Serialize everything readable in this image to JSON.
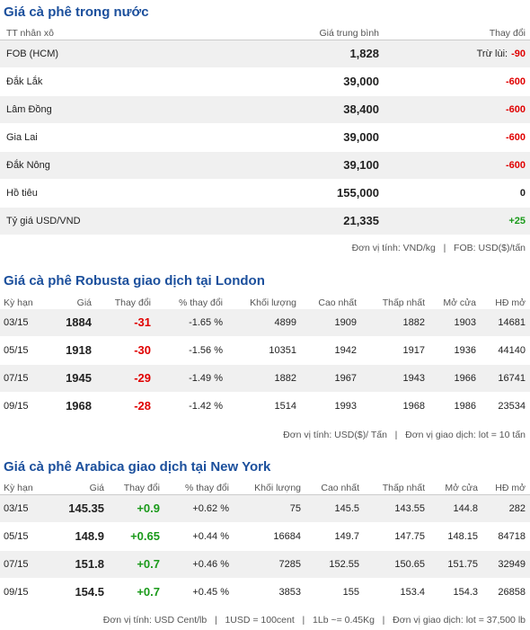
{
  "sections": [
    {
      "title": "Giá cà phê trong nước",
      "header": [
        "TT nhân xô",
        "Giá trung bình",
        "Thay đổi"
      ],
      "rows": [
        {
          "name": "FOB (HCM)",
          "price": "1,828",
          "note": "Trừ lùi:",
          "change": "-90"
        },
        {
          "name": "Đắk Lắk",
          "price": "39,000",
          "change": "-600"
        },
        {
          "name": "Lâm Đồng",
          "price": "38,400",
          "change": "-600"
        },
        {
          "name": "Gia Lai",
          "price": "39,000",
          "change": "-600"
        },
        {
          "name": "Đắk Nông",
          "price": "39,100",
          "change": "-600"
        },
        {
          "name": "Hồ tiêu",
          "price": "155,000",
          "change": "0"
        },
        {
          "name": "Tỷ giá USD/VND",
          "price": "21,335",
          "change": "+25"
        }
      ],
      "footnote": "Đơn vị tính: VND/kg   |   FOB: USD($)/tấn"
    },
    {
      "title": "Giá cà phê Robusta giao dịch tại London",
      "header": [
        "Kỳ hạn",
        "Giá",
        "Thay đổi",
        "% thay đổi",
        "Khối lượng",
        "Cao nhất",
        "Thấp nhất",
        "Mở cửa",
        "HĐ mở"
      ],
      "rows": [
        [
          "03/15",
          "1884",
          "-31",
          "-1.65 %",
          "4899",
          "1909",
          "1882",
          "1903",
          "14681"
        ],
        [
          "05/15",
          "1918",
          "-30",
          "-1.56 %",
          "10351",
          "1942",
          "1917",
          "1936",
          "44140"
        ],
        [
          "07/15",
          "1945",
          "-29",
          "-1.49 %",
          "1882",
          "1967",
          "1943",
          "1966",
          "16741"
        ],
        [
          "09/15",
          "1968",
          "-28",
          "-1.42 %",
          "1514",
          "1993",
          "1968",
          "1986",
          "23534"
        ]
      ],
      "footnote": "Đơn vị tính: USD($)/ Tấn   |   Đơn vị giao dịch: lot = 10 tấn"
    },
    {
      "title": "Giá cà phê Arabica giao dịch tại New York",
      "header": [
        "Kỳ hạn",
        "Giá",
        "Thay đổi",
        "% thay đổi",
        "Khối lượng",
        "Cao nhất",
        "Thấp nhất",
        "Mở cửa",
        "HĐ mở"
      ],
      "rows": [
        [
          "03/15",
          "145.35",
          "+0.9",
          "+0.62 %",
          "75",
          "145.5",
          "143.55",
          "144.8",
          "282"
        ],
        [
          "05/15",
          "148.9",
          "+0.65",
          "+0.44 %",
          "16684",
          "149.7",
          "147.75",
          "148.15",
          "84718"
        ],
        [
          "07/15",
          "151.8",
          "+0.7",
          "+0.46 %",
          "7285",
          "152.55",
          "150.65",
          "151.75",
          "32949"
        ],
        [
          "09/15",
          "154.5",
          "+0.7",
          "+0.45 %",
          "3853",
          "155",
          "153.4",
          "154.3",
          "26858"
        ]
      ],
      "footnote": "Đơn vị tính: USD Cent/lb   |   1USD = 100cent   |   1Lb ~= 0.45Kg   |   Đơn vị giao dịch: lot = 37,500 lb"
    }
  ]
}
